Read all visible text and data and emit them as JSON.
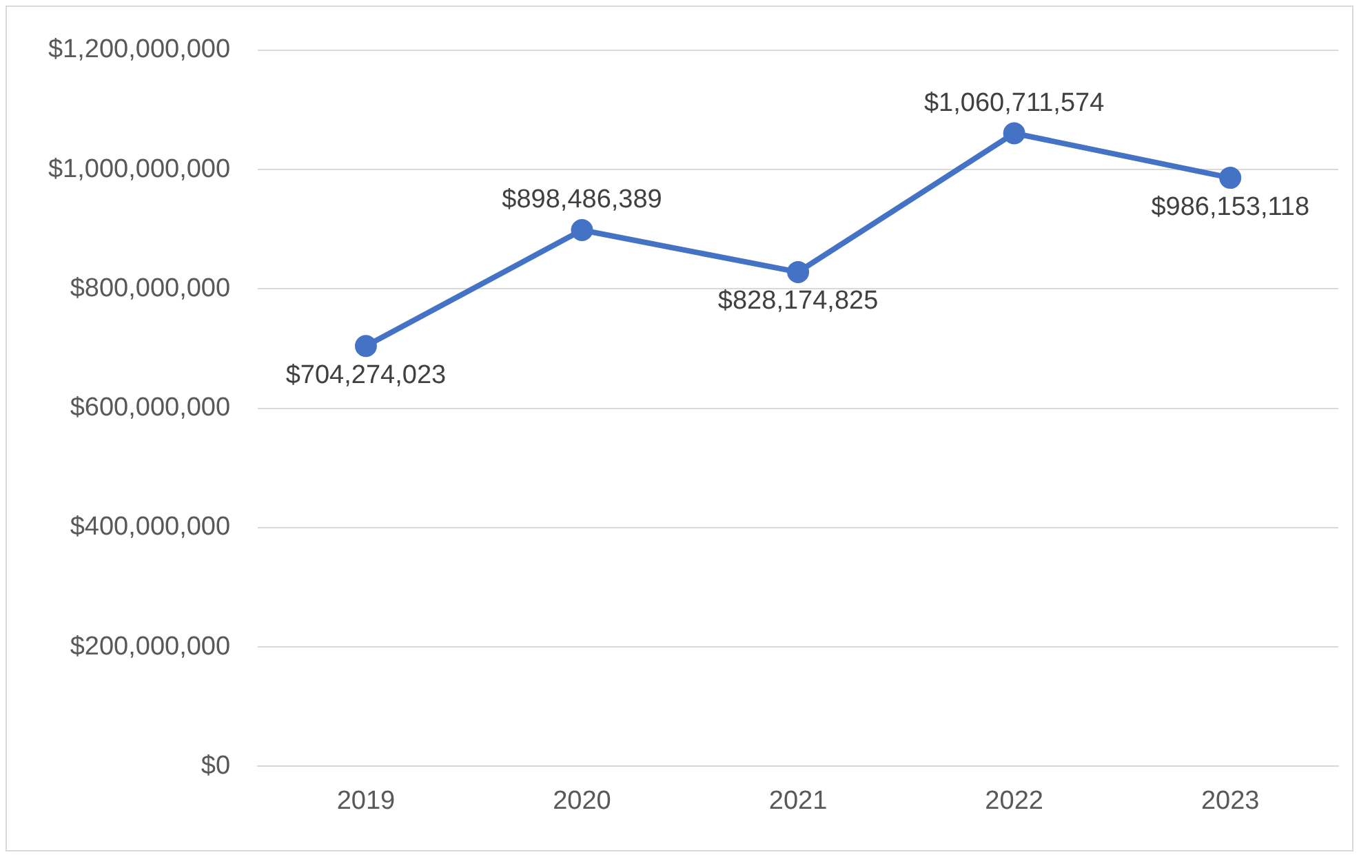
{
  "chart_data": {
    "type": "line",
    "categories": [
      "2019",
      "2020",
      "2021",
      "2022",
      "2023"
    ],
    "series": [
      {
        "color": "#4472c4",
        "values": [
          704274023,
          898486389,
          828174825,
          1060711574,
          986153118
        ],
        "value_labels": [
          "$704,274,023",
          "$898,486,389",
          "$828,174,825",
          "$1,060,711,574",
          "$986,153,118"
        ]
      }
    ],
    "ylim": [
      0,
      1200000000
    ],
    "yticks": [
      {
        "value": 0,
        "label": "$0"
      },
      {
        "value": 200000000,
        "label": "$200,000,000"
      },
      {
        "value": 400000000,
        "label": "$400,000,000"
      },
      {
        "value": 600000000,
        "label": "$600,000,000"
      },
      {
        "value": 800000000,
        "label": "$800,000,000"
      },
      {
        "value": 1000000000,
        "label": "$1,000,000,000"
      },
      {
        "value": 1200000000,
        "label": "$1,200,000,000"
      }
    ],
    "grid": "y",
    "legend": false,
    "marker": "circle",
    "line_style": "solid"
  }
}
